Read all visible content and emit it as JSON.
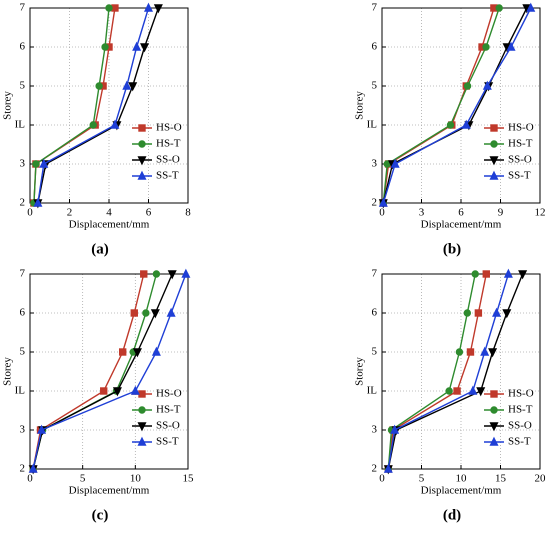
{
  "chart_data": [
    {
      "type": "line",
      "label": "(a)",
      "xlabel": "Displacement/mm",
      "ylabel": "Storey",
      "categories": [
        "2",
        "3",
        "IL",
        "5",
        "6",
        "7"
      ],
      "xlim": [
        0,
        8
      ],
      "xticks": [
        0,
        2,
        4,
        6,
        8
      ],
      "grid": true,
      "legend": "lower right",
      "series": [
        {
          "name": "HS-O",
          "color": "#c0392b",
          "marker": "square",
          "values": [
            0.2,
            0.3,
            3.3,
            3.7,
            4.0,
            4.3
          ]
        },
        {
          "name": "HS-T",
          "color": "#2e8b2e",
          "marker": "circle",
          "values": [
            0.2,
            0.3,
            3.2,
            3.5,
            3.8,
            4.0
          ]
        },
        {
          "name": "SS-O",
          "color": "#000000",
          "marker": "triangle-down",
          "values": [
            0.4,
            0.8,
            4.4,
            5.2,
            5.8,
            6.5
          ]
        },
        {
          "name": "SS-T",
          "color": "#1f3fd6",
          "marker": "triangle-up",
          "values": [
            0.4,
            0.7,
            4.3,
            4.9,
            5.4,
            6.0
          ]
        }
      ]
    },
    {
      "type": "line",
      "label": "(b)",
      "xlabel": "Displacement/mm",
      "ylabel": "Storey",
      "categories": [
        "2",
        "3",
        "IL",
        "5",
        "6",
        "7"
      ],
      "xlim": [
        0,
        12
      ],
      "xticks": [
        0,
        3,
        6,
        9,
        12
      ],
      "grid": true,
      "legend": "lower right",
      "series": [
        {
          "name": "HS-O",
          "color": "#c0392b",
          "marker": "square",
          "values": [
            0.1,
            0.5,
            5.3,
            6.4,
            7.6,
            8.5
          ]
        },
        {
          "name": "HS-T",
          "color": "#2e8b2e",
          "marker": "circle",
          "values": [
            0.1,
            0.4,
            5.2,
            6.5,
            7.9,
            8.9
          ]
        },
        {
          "name": "SS-O",
          "color": "#000000",
          "marker": "triangle-down",
          "values": [
            0.1,
            0.8,
            6.6,
            8.1,
            9.5,
            11.0
          ]
        },
        {
          "name": "SS-T",
          "color": "#1f3fd6",
          "marker": "triangle-up",
          "values": [
            0.1,
            1.0,
            6.4,
            8.0,
            9.8,
            11.3
          ]
        }
      ]
    },
    {
      "type": "line",
      "label": "(c)",
      "xlabel": "Displacement/mm",
      "ylabel": "Storey",
      "categories": [
        "2",
        "3",
        "IL",
        "5",
        "6",
        "7"
      ],
      "xlim": [
        0,
        15
      ],
      "xticks": [
        0,
        5,
        10,
        15
      ],
      "grid": true,
      "legend": "lower right",
      "series": [
        {
          "name": "HS-O",
          "color": "#c0392b",
          "marker": "square",
          "values": [
            0.3,
            1.0,
            7.0,
            8.8,
            9.9,
            10.8
          ]
        },
        {
          "name": "HS-T",
          "color": "#2e8b2e",
          "marker": "circle",
          "values": [
            0.3,
            1.2,
            8.2,
            9.8,
            11.0,
            12.0
          ]
        },
        {
          "name": "SS-O",
          "color": "#000000",
          "marker": "triangle-down",
          "values": [
            0.3,
            1.2,
            8.3,
            10.2,
            11.9,
            13.5
          ]
        },
        {
          "name": "SS-T",
          "color": "#1f3fd6",
          "marker": "triangle-up",
          "values": [
            0.3,
            1.1,
            10.0,
            12.0,
            13.4,
            14.8
          ]
        }
      ]
    },
    {
      "type": "line",
      "label": "(d)",
      "xlabel": "Displacement/mm",
      "ylabel": "Storey",
      "categories": [
        "2",
        "3",
        "IL",
        "5",
        "6",
        "7"
      ],
      "xlim": [
        0,
        20
      ],
      "xticks": [
        0,
        5,
        10,
        15,
        20
      ],
      "grid": true,
      "legend": "lower right",
      "series": [
        {
          "name": "HS-O",
          "color": "#c0392b",
          "marker": "square",
          "values": [
            0.8,
            1.4,
            9.5,
            11.2,
            12.2,
            13.2
          ]
        },
        {
          "name": "HS-T",
          "color": "#2e8b2e",
          "marker": "circle",
          "values": [
            0.8,
            1.2,
            8.5,
            9.8,
            10.8,
            11.8
          ]
        },
        {
          "name": "SS-O",
          "color": "#000000",
          "marker": "triangle-down",
          "values": [
            0.8,
            1.8,
            12.5,
            14.0,
            15.8,
            17.8
          ]
        },
        {
          "name": "SS-T",
          "color": "#1f3fd6",
          "marker": "triangle-up",
          "values": [
            0.8,
            1.6,
            11.5,
            13.0,
            14.5,
            16.0
          ]
        }
      ]
    }
  ]
}
